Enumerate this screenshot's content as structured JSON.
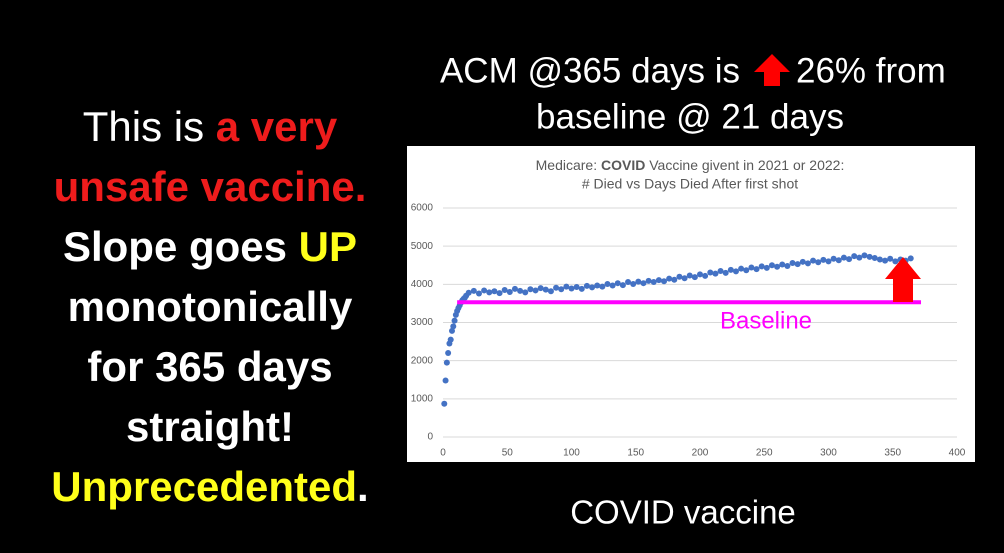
{
  "left_text": {
    "lines": [
      [
        {
          "text": "This is ",
          "color": "#ffffff",
          "bold": false
        },
        {
          "text": "a very",
          "color": "#ee1c1c",
          "bold": true
        }
      ],
      [
        {
          "text": "unsafe vaccine.",
          "color": "#ee1c1c",
          "bold": true
        }
      ],
      [
        {
          "text": "Slope goes ",
          "color": "#ffffff",
          "bold": true
        },
        {
          "text": "UP",
          "color": "#ffff1a",
          "bold": true
        }
      ],
      [
        {
          "text": "monotonically",
          "color": "#ffffff",
          "bold": true
        }
      ],
      [
        {
          "text": "for 365 days",
          "color": "#ffffff",
          "bold": true
        }
      ],
      [
        {
          "text": "straight!",
          "color": "#ffffff",
          "bold": true
        }
      ],
      [
        {
          "text": "Unprecedented",
          "color": "#ffff1a",
          "bold": true
        },
        {
          "text": ".",
          "color": "#ffffff",
          "bold": true
        }
      ]
    ]
  },
  "heading": {
    "line1_before": "ACM @365 days is",
    "line1_after": "26% from",
    "line2": "baseline @ 21 days"
  },
  "caption": "COVID vaccine",
  "chart_data": {
    "type": "scatter",
    "title_prefix": "Medicare: ",
    "title_bold": "COVID",
    "title_suffix": " Vaccine givent in 2021 or 2022:",
    "subtitle": "# Died vs Days Died After first shot",
    "color": "#4472c4",
    "xlim": [
      0,
      400
    ],
    "xticks": [
      0,
      50,
      100,
      150,
      200,
      250,
      300,
      350,
      400
    ],
    "ylim": [
      0,
      6000
    ],
    "yticks": [
      0,
      1000,
      2000,
      3000,
      4000,
      5000,
      6000
    ],
    "grid": true,
    "x": [
      1,
      2,
      3,
      4,
      5,
      6,
      7,
      8,
      9,
      10,
      11,
      12,
      13,
      14,
      15,
      16,
      17,
      18,
      20,
      24,
      28,
      32,
      36,
      40,
      44,
      48,
      52,
      56,
      60,
      64,
      68,
      72,
      76,
      80,
      84,
      88,
      92,
      96,
      100,
      104,
      108,
      112,
      116,
      120,
      124,
      128,
      132,
      136,
      140,
      144,
      148,
      152,
      156,
      160,
      164,
      168,
      172,
      176,
      180,
      184,
      188,
      192,
      196,
      200,
      204,
      208,
      212,
      216,
      220,
      224,
      228,
      232,
      236,
      240,
      244,
      248,
      252,
      256,
      260,
      264,
      268,
      272,
      276,
      280,
      284,
      288,
      292,
      296,
      300,
      304,
      308,
      312,
      316,
      320,
      324,
      328,
      332,
      336,
      340,
      344,
      348,
      352,
      356,
      360,
      364
    ],
    "values": [
      870,
      1480,
      1950,
      2200,
      2450,
      2550,
      2780,
      2900,
      3050,
      3200,
      3300,
      3380,
      3450,
      3520,
      3580,
      3620,
      3650,
      3700,
      3780,
      3830,
      3760,
      3840,
      3790,
      3820,
      3770,
      3850,
      3800,
      3880,
      3830,
      3790,
      3870,
      3840,
      3900,
      3860,
      3820,
      3910,
      3870,
      3940,
      3890,
      3930,
      3880,
      3960,
      3920,
      3970,
      3940,
      4010,
      3970,
      4030,
      3980,
      4060,
      4010,
      4070,
      4030,
      4090,
      4060,
      4110,
      4080,
      4150,
      4120,
      4200,
      4160,
      4230,
      4190,
      4260,
      4220,
      4310,
      4280,
      4350,
      4300,
      4380,
      4340,
      4410,
      4370,
      4440,
      4400,
      4470,
      4430,
      4500,
      4460,
      4520,
      4480,
      4560,
      4530,
      4590,
      4550,
      4620,
      4580,
      4640,
      4600,
      4670,
      4630,
      4700,
      4660,
      4740,
      4700,
      4760,
      4720,
      4690,
      4650,
      4620,
      4670,
      4600,
      4650,
      4620,
      4680
    ],
    "baseline": {
      "value": 3530,
      "label": "Baseline",
      "color": "#ff00ff",
      "x_range": [
        11,
        372
      ]
    },
    "arrow_color": "#ff0000"
  }
}
